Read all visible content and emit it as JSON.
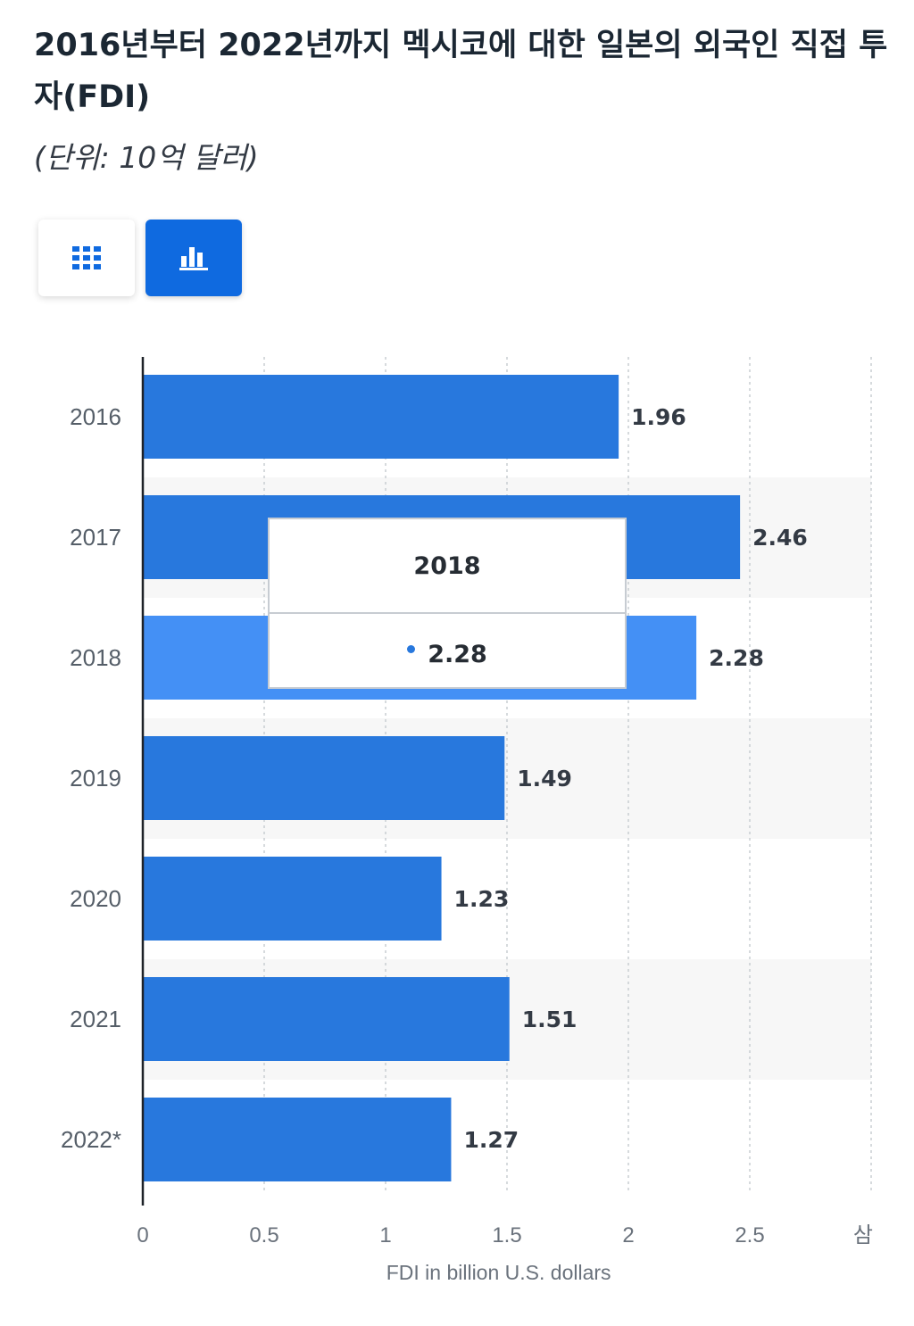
{
  "header": {
    "title": "2016년부터 2022년까지 멕시코에 대한 일본의 외국인 직접 투자(FDI)",
    "subtitle": "(단위: 10억 달러)"
  },
  "view_toggle": {
    "table_icon": "grid-icon",
    "chart_icon": "bar-chart-icon",
    "active": "chart"
  },
  "colors": {
    "bar": "#2878dd",
    "bar_highlight": "#4490f5",
    "active_button": "#0f6ae0",
    "band": "#f7f7f7"
  },
  "chart_data": {
    "type": "bar",
    "orientation": "horizontal",
    "categories": [
      "2016",
      "2017",
      "2018",
      "2019",
      "2020",
      "2021",
      "2022*"
    ],
    "values": [
      1.96,
      2.46,
      2.28,
      1.49,
      1.23,
      1.51,
      1.27
    ],
    "value_labels": [
      "1.96",
      "2.46",
      "2.28",
      "1.49",
      "1.23",
      "1.51",
      "1.27"
    ],
    "highlighted_category": "2018",
    "xlabel": "FDI in billion U.S. dollars",
    "xlim": [
      0,
      3
    ],
    "xticks": [
      "0",
      "0.5",
      "1",
      "1.5",
      "2",
      "2.5",
      "삼"
    ],
    "grid": true
  },
  "tooltip": {
    "title": "2018",
    "value": "2.28"
  }
}
